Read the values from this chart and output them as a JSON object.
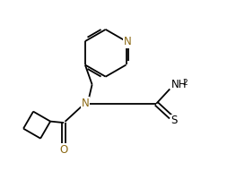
{
  "bg_color": "#ffffff",
  "line_color": "#000000",
  "heteroatom_color": "#8B6914",
  "figsize": [
    2.63,
    2.19
  ],
  "dpi": 100,
  "xlim": [
    0,
    10
  ],
  "ylim": [
    0,
    8.5
  ]
}
